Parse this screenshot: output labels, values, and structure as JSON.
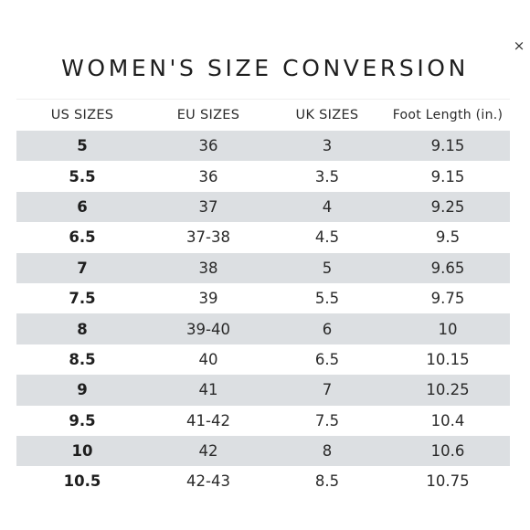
{
  "close_label": "×",
  "title": "WOMEN'S SIZE CONVERSION",
  "headers": [
    "US SIZES",
    "EU SIZES",
    "UK SIZES",
    "Foot Length (in.)"
  ],
  "rows": [
    [
      "5",
      "36",
      "3",
      "9.15"
    ],
    [
      "5.5",
      "36",
      "3.5",
      "9.15"
    ],
    [
      "6",
      "37",
      "4",
      "9.25"
    ],
    [
      "6.5",
      "37-38",
      "4.5",
      "9.5"
    ],
    [
      "7",
      "38",
      "5",
      "9.65"
    ],
    [
      "7.5",
      "39",
      "5.5",
      "9.75"
    ],
    [
      "8",
      "39-40",
      "6",
      "10"
    ],
    [
      "8.5",
      "40",
      "6.5",
      "10.15"
    ],
    [
      "9",
      "41",
      "7",
      "10.25"
    ],
    [
      "9.5",
      "41-42",
      "7.5",
      "10.4"
    ],
    [
      "10",
      "42",
      "8",
      "10.6"
    ],
    [
      "10.5",
      "42-43",
      "8.5",
      "10.75"
    ]
  ],
  "colors": {
    "stripe": "#dcdfe2",
    "background": "#ffffff",
    "text": "#222222"
  }
}
